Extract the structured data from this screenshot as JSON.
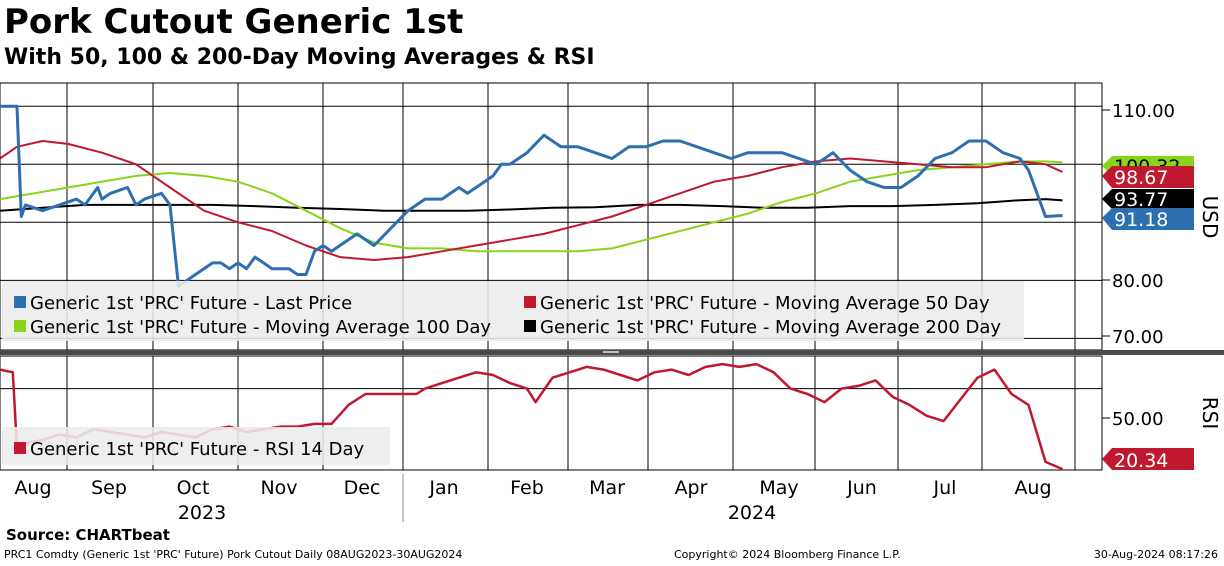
{
  "title": "Pork Cutout Generic 1st",
  "subtitle": "With 50, 100 & 200-Day Moving Averages & RSI",
  "footer": {
    "source": "Source: CHARTbeat",
    "left": "PRC1 Comdty (Generic 1st 'PRC' Future) Pork Cutout  Daily 08AUG2023-30AUG2024",
    "center": "Copyright© 2024 Bloomberg Finance L.P.",
    "right": "30-Aug-2024 08:17:26"
  },
  "colors": {
    "last_price": "#2e6fb0",
    "ma50": "#c0182f",
    "ma100": "#88d41a",
    "ma200": "#000000",
    "rsi": "#c0182f"
  },
  "chart_data": [
    {
      "type": "line",
      "panel": "price",
      "ylabel": "USD",
      "ylim": [
        68,
        114
      ],
      "yticks": [
        "110.00",
        "80.00",
        "70.00"
      ],
      "x_labels": [
        "Aug",
        "Sep",
        "Oct",
        "Nov",
        "Dec",
        "Jan",
        "Feb",
        "Mar",
        "Apr",
        "May",
        "Jun",
        "Jul",
        "Aug"
      ],
      "year_labels": [
        "2023",
        "2024"
      ],
      "legend": [
        "Generic 1st 'PRC' Future - Last Price",
        "Generic 1st 'PRC' Future - Moving Average 50 Day",
        "Generic 1st 'PRC' Future - Moving Average 100 Day",
        "Generic 1st 'PRC' Future - Moving Average 200 Day"
      ],
      "last_values": {
        "ma100": "100.32",
        "ma50": "98.67",
        "ma200": "93.77",
        "last": "91.18"
      },
      "series": [
        {
          "name": "Last Price",
          "x": [
            0.0,
            0.2,
            0.25,
            0.3,
            0.5,
            0.7,
            0.9,
            1.0,
            1.1,
            1.15,
            1.2,
            1.3,
            1.5,
            1.6,
            1.7,
            1.9,
            2.0,
            2.1,
            2.2,
            2.3,
            2.4,
            2.5,
            2.6,
            2.7,
            2.8,
            2.9,
            3.0,
            3.1,
            3.2,
            3.3,
            3.4,
            3.5,
            3.6,
            3.7,
            3.8,
            3.9,
            4.0,
            4.2,
            4.4,
            4.6,
            4.8,
            5.0,
            5.1,
            5.2,
            5.3,
            5.4,
            5.5,
            5.6,
            5.7,
            5.8,
            5.9,
            6.0,
            6.2,
            6.4,
            6.6,
            6.8,
            7.0,
            7.2,
            7.4,
            7.6,
            7.8,
            8.0,
            8.2,
            8.4,
            8.6,
            8.8,
            9.0,
            9.2,
            9.4,
            9.6,
            9.8,
            10.0,
            10.2,
            10.4,
            10.6,
            10.8,
            11.0,
            11.2,
            11.4,
            11.6,
            11.8,
            12.0,
            12.1,
            12.3,
            12.5
          ],
          "values": [
            110,
            110,
            91,
            93,
            92,
            93,
            94,
            93,
            95,
            96,
            94,
            95,
            96,
            93,
            94,
            95,
            93,
            79,
            80,
            81,
            82,
            83,
            83,
            82,
            83,
            82,
            84,
            83,
            82,
            82,
            82,
            81,
            81,
            85,
            86,
            85,
            86,
            88,
            86,
            89,
            92,
            94,
            94,
            94,
            95,
            96,
            95,
            96,
            97,
            98,
            100,
            100,
            102,
            105,
            103,
            103,
            102,
            101,
            103,
            103,
            104,
            104,
            103,
            102,
            101,
            102,
            102,
            102,
            101,
            100,
            102,
            99,
            97,
            96,
            96,
            98,
            101,
            102,
            104,
            104,
            102,
            101,
            99,
            91,
            91.18
          ]
        },
        {
          "name": "Moving Average 50 Day",
          "x": [
            0.0,
            0.2,
            0.5,
            0.8,
            1.2,
            1.6,
            2.0,
            2.4,
            2.8,
            3.2,
            3.6,
            4.0,
            4.4,
            4.8,
            5.2,
            5.6,
            6.0,
            6.4,
            6.8,
            7.2,
            7.6,
            8.0,
            8.4,
            8.8,
            9.2,
            9.6,
            10.0,
            10.4,
            10.8,
            11.2,
            11.6,
            12.0,
            12.3,
            12.5
          ],
          "values": [
            101,
            103,
            104,
            103.5,
            102,
            100,
            96,
            92,
            90,
            88.5,
            86,
            84,
            83.5,
            84,
            85,
            86,
            87,
            88,
            89.5,
            91,
            93,
            95,
            97,
            98,
            99.5,
            100.5,
            101,
            100.5,
            100,
            99.5,
            99.5,
            100.5,
            100,
            98.67
          ]
        },
        {
          "name": "Moving Average 100 Day",
          "x": [
            0.0,
            0.4,
            0.8,
            1.2,
            1.6,
            2.0,
            2.4,
            2.8,
            3.2,
            3.6,
            4.0,
            4.4,
            4.8,
            5.2,
            5.6,
            6.0,
            6.4,
            6.8,
            7.2,
            7.6,
            8.0,
            8.4,
            8.8,
            9.2,
            9.6,
            10.0,
            10.4,
            10.8,
            11.2,
            11.6,
            12.0,
            12.3,
            12.5
          ],
          "values": [
            94,
            95,
            96,
            97,
            98,
            98.5,
            98,
            97,
            95,
            92,
            89,
            86.5,
            85.5,
            85.5,
            85,
            85,
            85,
            85,
            85.5,
            87,
            88.5,
            90,
            91.5,
            93.5,
            95,
            97,
            98,
            99,
            99.5,
            100,
            100.5,
            100.5,
            100.32
          ]
        },
        {
          "name": "Moving Average 200 Day",
          "x": [
            0.0,
            0.5,
            1.0,
            1.5,
            2.0,
            2.5,
            3.0,
            3.5,
            4.0,
            4.5,
            5.0,
            5.5,
            6.0,
            6.5,
            7.0,
            7.5,
            8.0,
            8.5,
            9.0,
            9.5,
            10.0,
            10.5,
            11.0,
            11.5,
            12.0,
            12.3,
            12.5
          ],
          "values": [
            92,
            92.5,
            93,
            93,
            93,
            93,
            92.8,
            92.5,
            92.3,
            92,
            92,
            92,
            92.2,
            92.5,
            92.6,
            93,
            93,
            92.8,
            92.5,
            92.5,
            92.8,
            92.8,
            93,
            93.3,
            93.8,
            94,
            93.77
          ]
        }
      ]
    },
    {
      "type": "line",
      "panel": "rsi",
      "ylabel": "RSI",
      "ylim": [
        20,
        62
      ],
      "yticks": [
        "50.00"
      ],
      "legend": [
        "Generic 1st 'PRC' Future - RSI 14 Day"
      ],
      "last_values": {
        "rsi": "20.34"
      },
      "series": [
        {
          "name": "RSI 14 Day",
          "x": [
            0.0,
            0.15,
            0.2,
            0.3,
            0.5,
            0.7,
            0.9,
            1.1,
            1.3,
            1.5,
            1.7,
            1.9,
            2.1,
            2.3,
            2.5,
            2.7,
            2.9,
            3.1,
            3.3,
            3.5,
            3.7,
            3.9,
            4.1,
            4.3,
            4.5,
            4.9,
            5.0,
            5.2,
            5.4,
            5.6,
            5.8,
            6.0,
            6.2,
            6.3,
            6.5,
            6.7,
            6.9,
            7.1,
            7.3,
            7.5,
            7.7,
            7.9,
            8.1,
            8.3,
            8.5,
            8.7,
            8.9,
            9.1,
            9.3,
            9.5,
            9.7,
            9.9,
            10.1,
            10.3,
            10.5,
            10.7,
            10.9,
            11.1,
            11.3,
            11.5,
            11.7,
            11.9,
            12.1,
            12.3,
            12.5
          ],
          "values": [
            57,
            56,
            28,
            30,
            31,
            33,
            32,
            35,
            34,
            33,
            32,
            34,
            33,
            32,
            35,
            36,
            34,
            35,
            36,
            36,
            37,
            37,
            44,
            48,
            48,
            48,
            50,
            52,
            54,
            56,
            55,
            52,
            50,
            45,
            54,
            56,
            58,
            57,
            55,
            53,
            56,
            57,
            55,
            58,
            59,
            58,
            59,
            56,
            50,
            48,
            45,
            50,
            51,
            53,
            47,
            44,
            40,
            38,
            46,
            54,
            57,
            48,
            44,
            23,
            20.34
          ]
        }
      ]
    }
  ]
}
